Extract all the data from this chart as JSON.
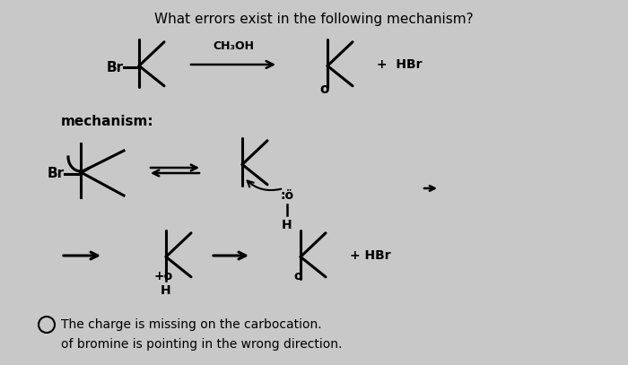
{
  "bg_color": "#c8c8c8",
  "title": "What errors exist in the following mechanism?",
  "answer1": "The charge is missing on the carbocation.",
  "answer2": "of bromine is pointing in the wrong direction."
}
